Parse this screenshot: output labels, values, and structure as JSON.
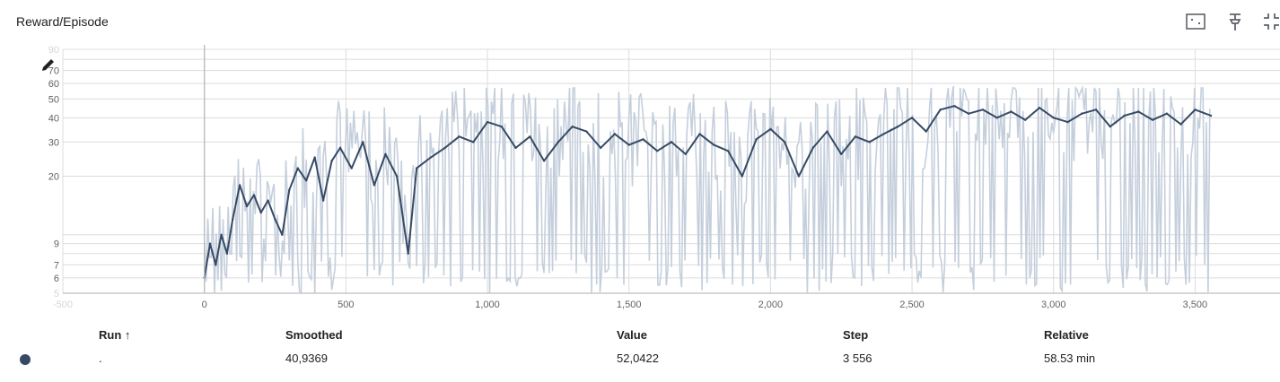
{
  "card": {
    "title": "Reward/Episode"
  },
  "toolbar": {
    "icons": [
      "fit-domain-icon",
      "pin-icon",
      "collapse-icon"
    ]
  },
  "colors": {
    "raw": "#c5cfdc",
    "smoothed": "#364a65",
    "grid": "#dcdcdc",
    "axis": "#bdbdbd"
  },
  "chart_data": {
    "type": "line",
    "title": "Reward/Episode",
    "y_scale": "log",
    "xlim": [
      -500,
      3800
    ],
    "ylim": [
      5,
      90
    ],
    "x_ticks": [
      "-500",
      "0",
      "500",
      "1,000",
      "1,500",
      "2,000",
      "2,500",
      "3,000",
      "3,500"
    ],
    "x_tick_values": [
      -500,
      0,
      500,
      1000,
      1500,
      2000,
      2500,
      3000,
      3500
    ],
    "y_ticks": [
      "5",
      "6",
      "7",
      "9",
      "20",
      "30",
      "40",
      "50",
      "60",
      "70",
      "90"
    ],
    "y_tick_values": [
      5,
      6,
      7,
      9,
      20,
      30,
      40,
      50,
      60,
      70,
      90
    ],
    "y_gridlines": [
      5,
      6,
      7,
      8,
      9,
      10,
      20,
      30,
      40,
      50,
      60,
      70,
      80,
      90
    ],
    "series": [
      {
        "kind": "smoothed",
        "x": [
          0,
          20,
          40,
          60,
          80,
          100,
          125,
          150,
          175,
          200,
          225,
          250,
          275,
          300,
          330,
          360,
          390,
          420,
          450,
          480,
          520,
          560,
          600,
          640,
          680,
          720,
          750,
          800,
          850,
          900,
          950,
          1000,
          1050,
          1100,
          1150,
          1200,
          1250,
          1300,
          1350,
          1400,
          1450,
          1500,
          1550,
          1600,
          1650,
          1700,
          1750,
          1800,
          1850,
          1900,
          1950,
          2000,
          2050,
          2100,
          2150,
          2200,
          2250,
          2300,
          2350,
          2400,
          2450,
          2500,
          2550,
          2600,
          2650,
          2700,
          2750,
          2800,
          2850,
          2900,
          2950,
          3000,
          3050,
          3100,
          3150,
          3200,
          3250,
          3300,
          3350,
          3400,
          3450,
          3500,
          3556
        ],
        "y": [
          6,
          9,
          7,
          10,
          8,
          12,
          18,
          14,
          16,
          13,
          15,
          12,
          10,
          17,
          22,
          19,
          25,
          15,
          24,
          28,
          22,
          30,
          18,
          26,
          20,
          8,
          22,
          25,
          28,
          32,
          30,
          38,
          36,
          28,
          32,
          24,
          30,
          36,
          34,
          28,
          33,
          29,
          31,
          27,
          30,
          26,
          33,
          29,
          27,
          20,
          31,
          35,
          30,
          20,
          28,
          34,
          26,
          32,
          30,
          33,
          36,
          40,
          34,
          44,
          46,
          42,
          44,
          40,
          43,
          39,
          45,
          40,
          38,
          42,
          44,
          36,
          41,
          43,
          39,
          42,
          37,
          44,
          41
        ]
      }
    ]
  },
  "legend_table": {
    "headers": {
      "run": "Run ↑",
      "smoothed": "Smoothed",
      "value": "Value",
      "step": "Step",
      "relative": "Relative"
    },
    "rows": [
      {
        "run": ".",
        "smoothed": "40,9369",
        "value": "52,0422",
        "step": "3 556",
        "relative": "58.53 min"
      }
    ]
  }
}
